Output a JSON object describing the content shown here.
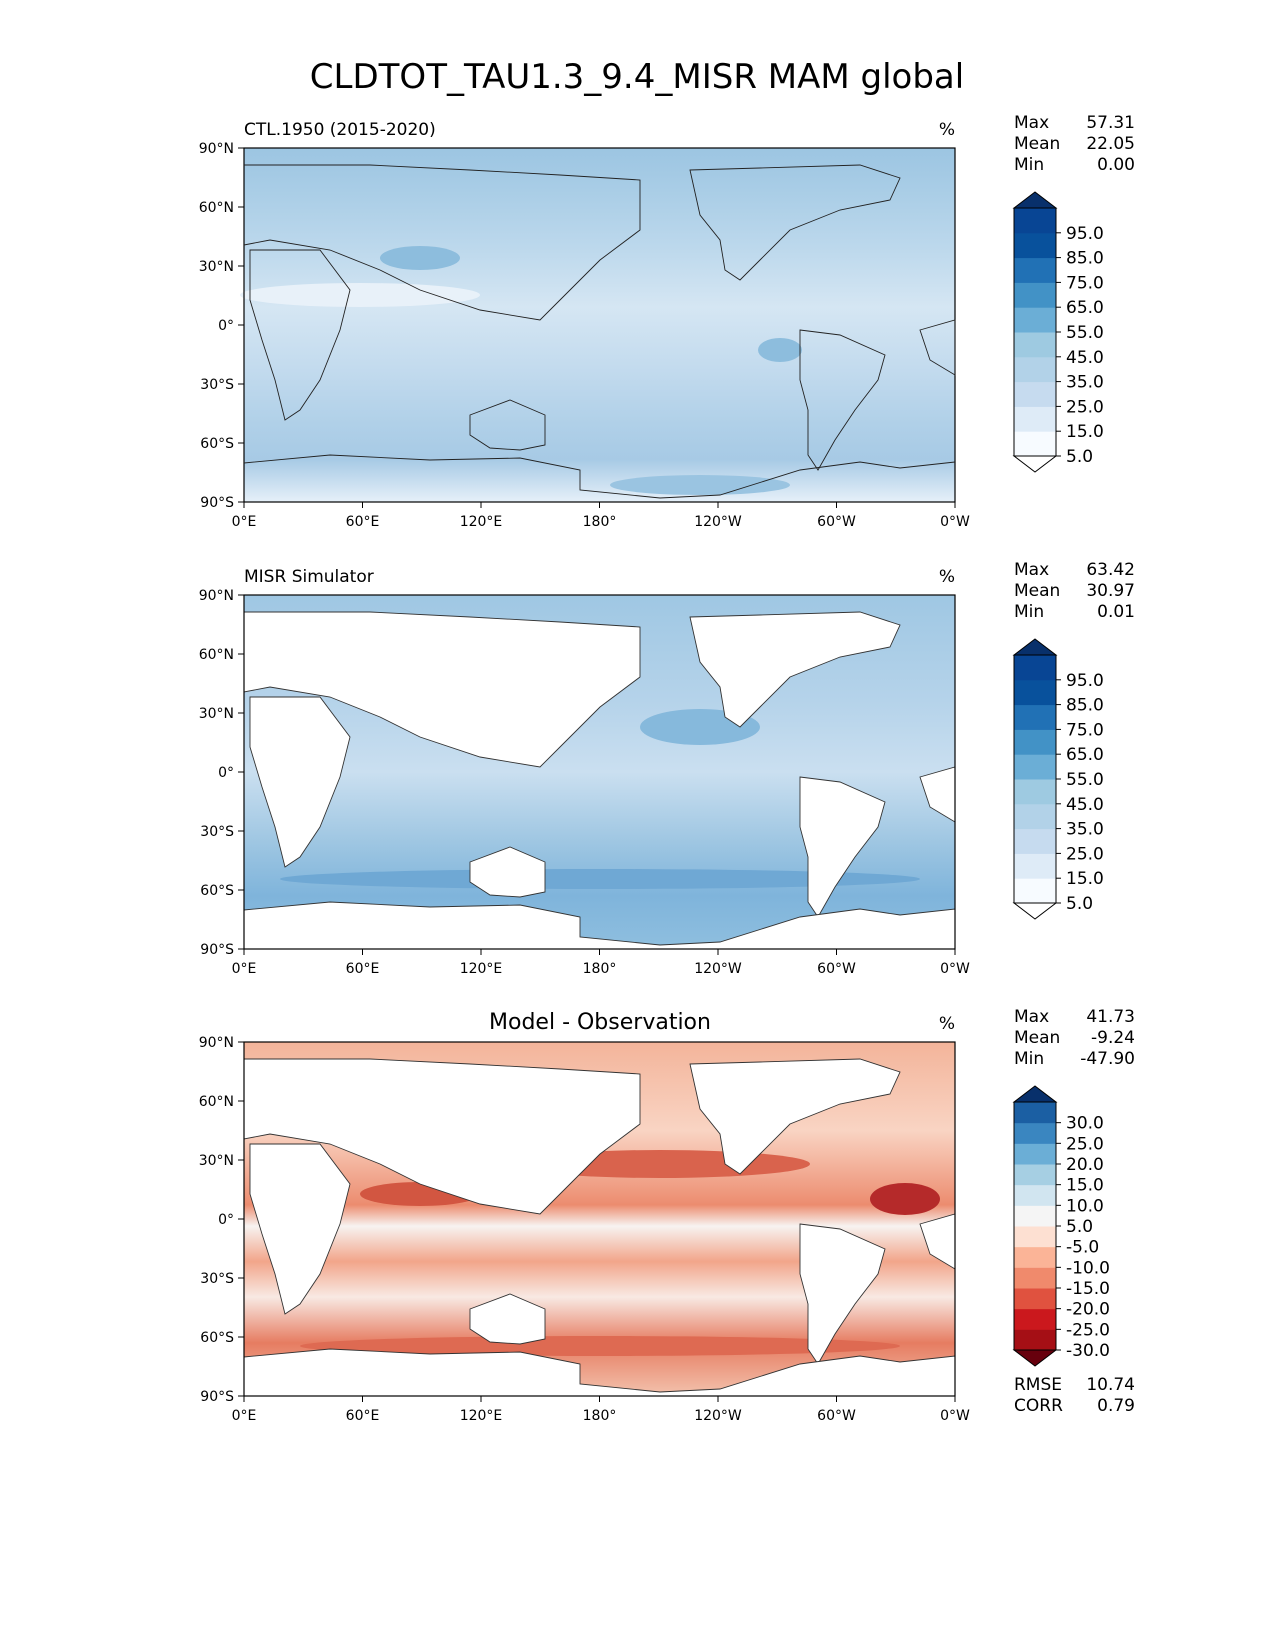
{
  "title": "CLDTOT_TAU1.3_9.4_MISR MAM global",
  "lat_labels": [
    "90°N",
    "60°N",
    "30°N",
    "0°",
    "30°S",
    "60°S",
    "90°S"
  ],
  "lon_labels": [
    "0°E",
    "60°E",
    "120°E",
    "180°",
    "120°W",
    "60°W",
    "0°W"
  ],
  "panels": [
    {
      "id": "test",
      "left_title": "CTL.1950 (2015-2020)",
      "center_title": "",
      "units": "%",
      "stats": [
        {
          "label": "Max",
          "value": "57.31"
        },
        {
          "label": "Mean",
          "value": "22.05"
        },
        {
          "label": "Min",
          "value": "0.00"
        }
      ],
      "colorbar": {
        "ticks": [
          "95.0",
          "85.0",
          "75.0",
          "65.0",
          "55.0",
          "45.0",
          "35.0",
          "25.0",
          "15.0",
          "5.0"
        ],
        "colors": [
          "#f7fbff",
          "#deebf7",
          "#c6dbef",
          "#b2d2e8",
          "#9ecae1",
          "#6baed6",
          "#4292c6",
          "#2171b5",
          "#08519c",
          "#084594"
        ],
        "over": "#08306b",
        "under": "#ffffff"
      },
      "metrics": []
    },
    {
      "id": "ref",
      "left_title": "MISR Simulator",
      "center_title": "",
      "units": "%",
      "stats": [
        {
          "label": "Max",
          "value": "63.42"
        },
        {
          "label": "Mean",
          "value": "30.97"
        },
        {
          "label": "Min",
          "value": "0.01"
        }
      ],
      "colorbar": {
        "ticks": [
          "95.0",
          "85.0",
          "75.0",
          "65.0",
          "55.0",
          "45.0",
          "35.0",
          "25.0",
          "15.0",
          "5.0"
        ],
        "colors": [
          "#f7fbff",
          "#deebf7",
          "#c6dbef",
          "#b2d2e8",
          "#9ecae1",
          "#6baed6",
          "#4292c6",
          "#2171b5",
          "#08519c",
          "#084594"
        ],
        "over": "#08306b",
        "under": "#ffffff"
      },
      "metrics": []
    },
    {
      "id": "diff",
      "left_title": "",
      "center_title": "Model - Observation",
      "units": "%",
      "stats": [
        {
          "label": "Max",
          "value": "41.73"
        },
        {
          "label": "Mean",
          "value": "-9.24"
        },
        {
          "label": "Min",
          "value": "-47.90"
        }
      ],
      "colorbar": {
        "ticks": [
          "30.0",
          "25.0",
          "20.0",
          "15.0",
          "10.0",
          "5.0",
          "-5.0",
          "-10.0",
          "-15.0",
          "-20.0",
          "-25.0",
          "-30.0"
        ],
        "colors": [
          "#a50f15",
          "#cb181d",
          "#e0523f",
          "#f08a6c",
          "#fbb497",
          "#fde0d2",
          "#f5f5f5",
          "#d1e5f0",
          "#a6cfe3",
          "#6baed6",
          "#3a86c0",
          "#1b5fa3"
        ],
        "over": "#08306b",
        "under": "#67000d"
      },
      "metrics": [
        {
          "label": "RMSE",
          "value": "10.74"
        },
        {
          "label": "CORR",
          "value": "0.79"
        }
      ]
    }
  ]
}
